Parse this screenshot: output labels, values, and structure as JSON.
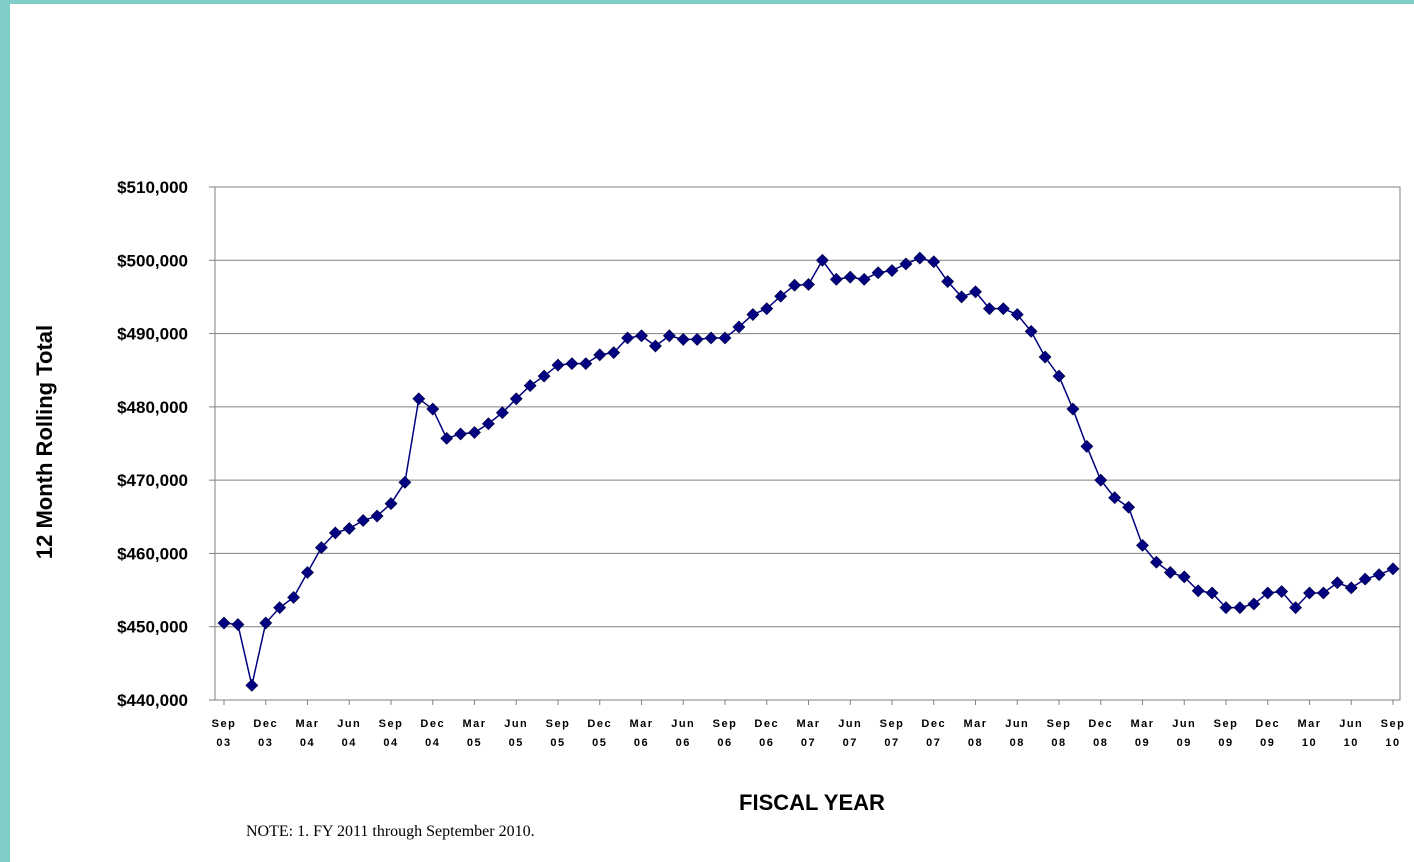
{
  "chart_data": {
    "type": "line",
    "xlabel": "FISCAL YEAR",
    "ylabel": "12 Month Rolling Total",
    "ylim": [
      440000,
      510000
    ],
    "y_ticks": [
      "$440,000",
      "$450,000",
      "$460,000",
      "$470,000",
      "$480,000",
      "$490,000",
      "$500,000",
      "$510,000"
    ],
    "grid": true,
    "x_tick_labels": [
      [
        "Sep",
        "03"
      ],
      [
        "Dec",
        "03"
      ],
      [
        "Mar",
        "04"
      ],
      [
        "Jun",
        "04"
      ],
      [
        "Sep",
        "04"
      ],
      [
        "Dec",
        "04"
      ],
      [
        "Mar",
        "05"
      ],
      [
        "Jun",
        "05"
      ],
      [
        "Sep",
        "05"
      ],
      [
        "Dec",
        "05"
      ],
      [
        "Mar",
        "06"
      ],
      [
        "Jun",
        "06"
      ],
      [
        "Sep",
        "06"
      ],
      [
        "Dec",
        "06"
      ],
      [
        "Mar",
        "07"
      ],
      [
        "Jun",
        "07"
      ],
      [
        "Sep",
        "07"
      ],
      [
        "Dec",
        "07"
      ],
      [
        "Mar",
        "08"
      ],
      [
        "Jun",
        "08"
      ],
      [
        "Sep",
        "08"
      ],
      [
        "Dec",
        "08"
      ],
      [
        "Mar",
        "09"
      ],
      [
        "Jun",
        "09"
      ],
      [
        "Sep",
        "09"
      ],
      [
        "Dec",
        "09"
      ],
      [
        "Mar",
        "10"
      ],
      [
        "Jun",
        "10"
      ],
      [
        "Sep",
        "10"
      ]
    ],
    "series": [
      {
        "color": "#000080",
        "values": [
          450500,
          450300,
          442000,
          450500,
          452600,
          454000,
          457400,
          460800,
          462800,
          463400,
          464500,
          465100,
          466800,
          469700,
          481100,
          479700,
          475700,
          476300,
          476500,
          477700,
          479200,
          481100,
          482900,
          484200,
          485700,
          485900,
          485900,
          487100,
          487400,
          489400,
          489700,
          488300,
          489700,
          489200,
          489200,
          489400,
          489400,
          490900,
          492600,
          493400,
          495100,
          496600,
          496700,
          500000,
          497400,
          497700,
          497400,
          498300,
          498600,
          499500,
          500300,
          499800,
          497100,
          495000,
          495700,
          493400,
          493400,
          492600,
          490300,
          486800,
          484200,
          479700,
          474600,
          470000,
          467600,
          466300,
          461100,
          458800,
          457400,
          456800,
          454900,
          454600,
          452600,
          452600,
          453100,
          454600,
          454800,
          452600,
          454600,
          454600,
          456000,
          455300,
          456500,
          457100,
          457900
        ]
      }
    ]
  },
  "note": "NOTE: 1. FY 2011 through September 2010."
}
